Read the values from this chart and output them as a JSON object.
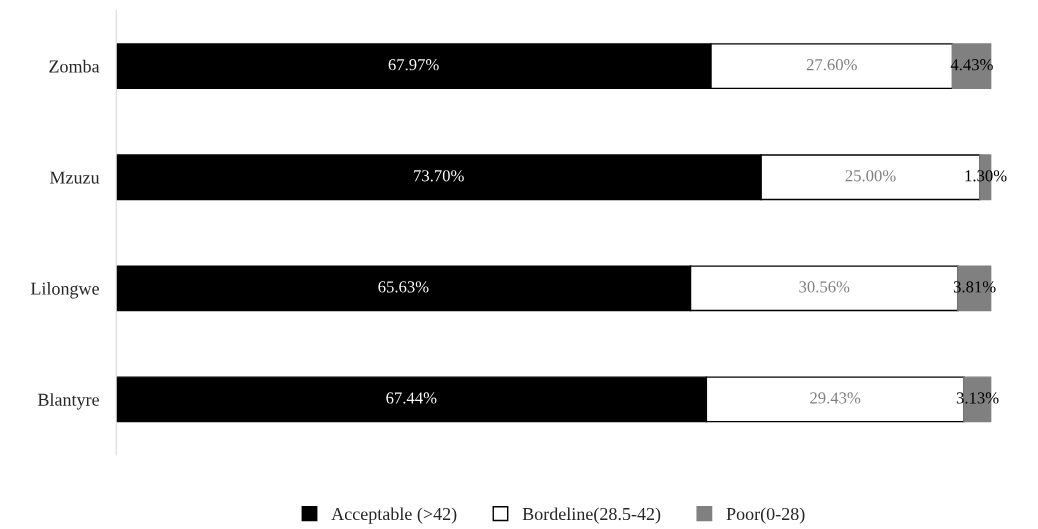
{
  "chart_data": {
    "type": "bar",
    "orientation": "horizontal",
    "stacked": true,
    "categories": [
      "Zomba",
      "Mzuzu",
      "Lilongwe",
      "Blantyre"
    ],
    "series": [
      {
        "name": "Acceptable (>42)",
        "color": "#000000",
        "values": [
          67.97,
          73.7,
          65.63,
          67.44
        ],
        "value_labels": [
          "67.97%",
          "73.70%",
          "65.63%",
          "67.44%"
        ]
      },
      {
        "name": "Bordeline(28.5-42)",
        "color": "#ffffff",
        "values": [
          27.6,
          25.0,
          30.56,
          29.43
        ],
        "value_labels": [
          "27.60%",
          "25.00%",
          "30.56%",
          "29.43%"
        ]
      },
      {
        "name": "Poor(0-28)",
        "color": "#808080",
        "values": [
          4.43,
          1.3,
          3.81,
          3.13
        ],
        "value_labels": [
          "4.43%",
          "1.30%",
          "3.81%",
          "3.13%"
        ]
      }
    ],
    "legend": "bottom"
  }
}
